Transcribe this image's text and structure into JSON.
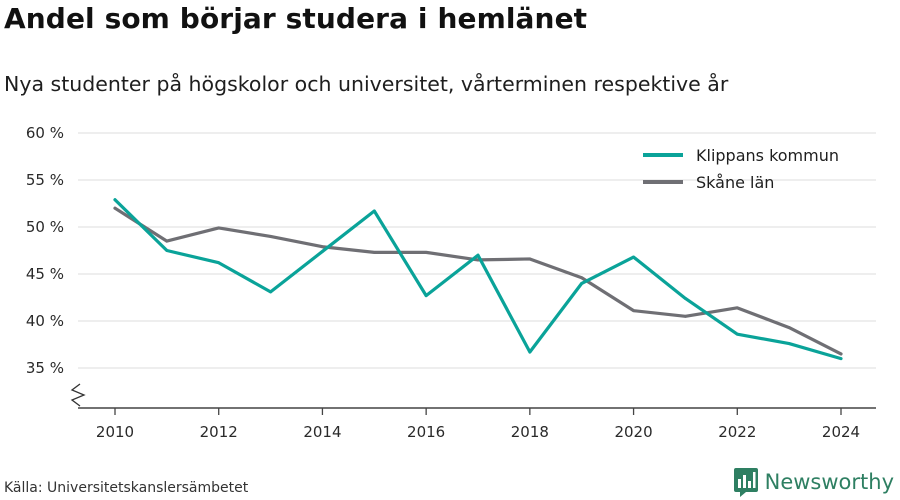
{
  "title": "Andel som börjar studera i hemlänet",
  "subtitle": "Nya studenter på högskolor och universitet, vårterminen respektive år",
  "source": "Källa: Universitetskanslersämbetet",
  "brand": {
    "name": "Newsworthy",
    "logo_icon": "bar-chart-icon",
    "color": "#2e7f62"
  },
  "chart_data": {
    "type": "line",
    "title": "",
    "xlabel": "",
    "ylabel": "",
    "x": [
      2010,
      2011,
      2012,
      2013,
      2014,
      2015,
      2016,
      2017,
      2018,
      2019,
      2020,
      2021,
      2022,
      2023,
      2024
    ],
    "x_ticks": [
      "2010",
      "2012",
      "2014",
      "2016",
      "2018",
      "2020",
      "2022",
      "2024"
    ],
    "y_ticks": [
      "35 %",
      "40 %",
      "45 %",
      "50 %",
      "55 %",
      "60 %"
    ],
    "ylim": [
      35,
      60
    ],
    "y_axis_break": true,
    "grid": true,
    "legend_position": "top-right",
    "series": [
      {
        "name": "Klippans kommun",
        "color": "#0aa399",
        "values": [
          52.9,
          47.5,
          46.2,
          43.1,
          47.4,
          51.7,
          42.7,
          47.0,
          36.7,
          44.0,
          46.8,
          42.4,
          38.6,
          37.6,
          36.0
        ]
      },
      {
        "name": "Skåne län",
        "color": "#6f6f74",
        "values": [
          52.0,
          48.5,
          49.9,
          49.0,
          47.9,
          47.3,
          47.3,
          46.5,
          46.6,
          44.6,
          41.1,
          40.5,
          41.4,
          39.3,
          36.5
        ]
      }
    ]
  }
}
